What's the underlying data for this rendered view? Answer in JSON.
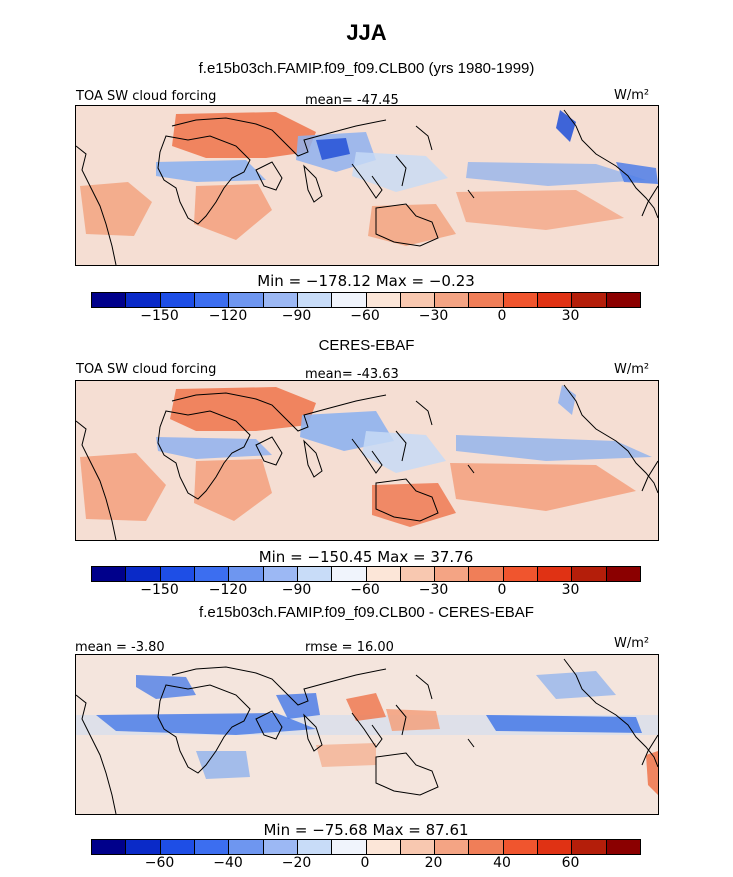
{
  "figure": {
    "season": "JJA",
    "model_title": "f.e15b03ch.FAMIP.f09_f09.CLB00 (yrs 1980-1999)",
    "obs_title": "CERES-EBAF",
    "diff_title": "f.e15b03ch.FAMIP.f09_f09.CLB00 - CERES-EBAF"
  },
  "panels": [
    {
      "field_label": "TOA SW cloud forcing",
      "mean_label": "mean= -47.45",
      "units": "W/m²",
      "stats": "Min = −178.12 Max = −0.23",
      "colorbar_ticks": [
        "−150",
        "−120",
        "−90",
        "−60",
        "−30",
        "0",
        "30"
      ]
    },
    {
      "field_label": "TOA SW cloud forcing",
      "mean_label": "mean= -43.63",
      "units": "W/m²",
      "stats": "Min = −150.45 Max = 37.76",
      "colorbar_ticks": [
        "−150",
        "−120",
        "−90",
        "−60",
        "−30",
        "0",
        "30"
      ]
    },
    {
      "mean_label": "mean = -3.80",
      "rmse_label": "rmse = 16.00",
      "units": "W/m²",
      "stats": "Min = −75.68 Max = 87.61",
      "colorbar_ticks": [
        "−60",
        "−40",
        "−20",
        "0",
        "20",
        "40",
        "60"
      ]
    }
  ],
  "colorbar_colors": [
    "#00008b",
    "#0a2ac8",
    "#1e4ee6",
    "#3c6ef0",
    "#6e96f0",
    "#9cb8f4",
    "#c8dcf8",
    "#f0f4fc",
    "#fce6d8",
    "#f8c8b0",
    "#f4a484",
    "#f07e58",
    "#f0552e",
    "#e03214",
    "#b41e0a",
    "#8b0000"
  ],
  "map_colors": {
    "ocean_base": "#f4f8fc",
    "light_red": "#f6c9b0",
    "mid_red": "#f3a07c",
    "strong_red": "#ef7a52",
    "light_blue": "#c7dbf6",
    "mid_blue": "#8fb2ee",
    "strong_blue": "#4d7ee8",
    "deep_blue": "#2a56d8"
  }
}
